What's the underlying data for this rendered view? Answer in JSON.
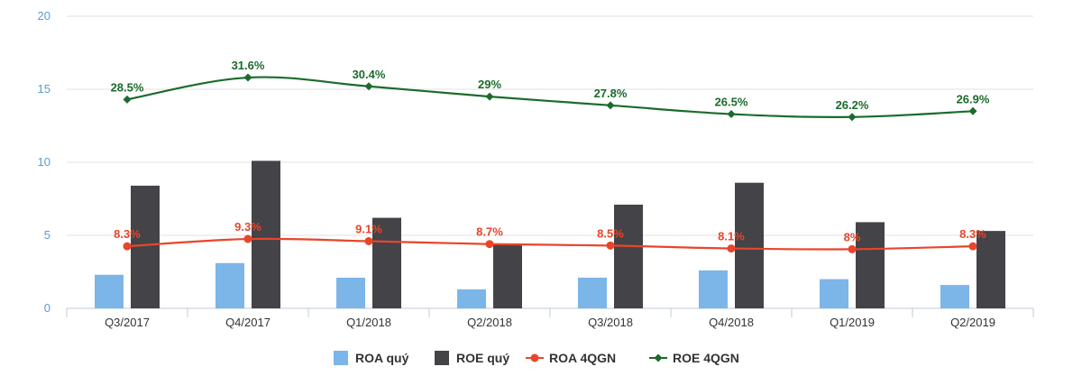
{
  "chart_data": {
    "type": "bar",
    "categories": [
      "Q3/2017",
      "Q4/2017",
      "Q1/2018",
      "Q2/2018",
      "Q3/2018",
      "Q4/2018",
      "Q1/2019",
      "Q2/2019"
    ],
    "ylim": [
      0,
      20
    ],
    "yticks": [
      0,
      5,
      10,
      15,
      20
    ],
    "grid": true,
    "legend_position": "bottom",
    "series": [
      {
        "name": "ROA quý",
        "kind": "bar",
        "color": "#7cb5e8",
        "values": [
          2.3,
          3.1,
          2.1,
          1.3,
          2.1,
          2.6,
          2.0,
          1.6
        ]
      },
      {
        "name": "ROE quý",
        "kind": "bar",
        "color": "#434348",
        "values": [
          8.4,
          10.1,
          6.2,
          4.4,
          7.1,
          8.6,
          5.9,
          5.3
        ]
      },
      {
        "name": "ROA 4QGN",
        "kind": "line",
        "color": "#e8452b",
        "values": [
          4.25,
          4.75,
          4.6,
          4.4,
          4.3,
          4.1,
          4.05,
          4.25
        ],
        "labels": [
          "8.3%",
          "9.3%",
          "9.1%",
          "8.7%",
          "8.5%",
          "8.1%",
          "8%",
          "8.3%"
        ]
      },
      {
        "name": "ROE 4QGN",
        "kind": "line",
        "color": "#1b6b2c",
        "values": [
          14.3,
          15.8,
          15.2,
          14.5,
          13.9,
          13.3,
          13.1,
          13.5
        ],
        "labels": [
          "28.5%",
          "31.6%",
          "30.4%",
          "29%",
          "27.8%",
          "26.5%",
          "26.2%",
          "26.9%"
        ]
      }
    ]
  }
}
